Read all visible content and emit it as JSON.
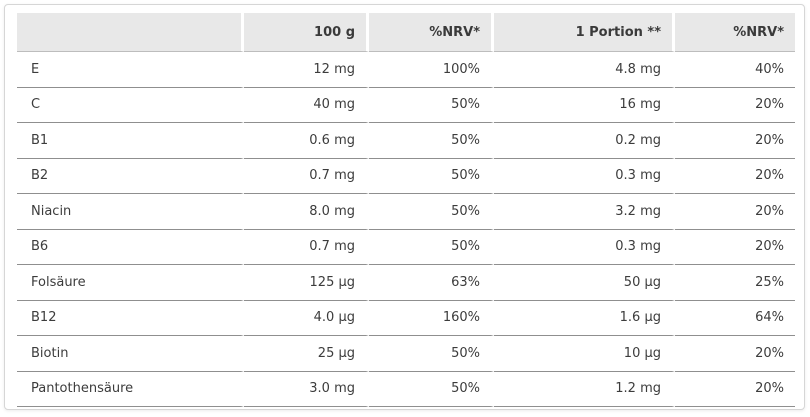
{
  "table": {
    "headers": [
      "",
      "100 g",
      "%NRV*",
      "1 Portion **",
      "%NRV*"
    ],
    "rows": [
      [
        "E",
        "12 mg",
        "100%",
        "4.8 mg",
        "40%"
      ],
      [
        "C",
        "40 mg",
        "50%",
        "16 mg",
        "20%"
      ],
      [
        "B1",
        "0.6 mg",
        "50%",
        "0.2 mg",
        "20%"
      ],
      [
        "B2",
        "0.7 mg",
        "50%",
        "0.3 mg",
        "20%"
      ],
      [
        "Niacin",
        "8.0 mg",
        "50%",
        "3.2 mg",
        "20%"
      ],
      [
        "B6",
        "0.7 mg",
        "50%",
        "0.3 mg",
        "20%"
      ],
      [
        "Folsäure",
        "125 µg",
        "63%",
        "50 µg",
        "25%"
      ],
      [
        "B12",
        "4.0 µg",
        "160%",
        "1.6 µg",
        "64%"
      ],
      [
        "Biotin",
        "25 µg",
        "50%",
        "10 µg",
        "20%"
      ],
      [
        "Pantothensäure",
        "3.0 mg",
        "50%",
        "1.2 mg",
        "20%"
      ]
    ]
  },
  "colors": {
    "header_background": "#e8e8e8",
    "row_divider": "#8f8f8f",
    "text": "#3c3c3c"
  }
}
